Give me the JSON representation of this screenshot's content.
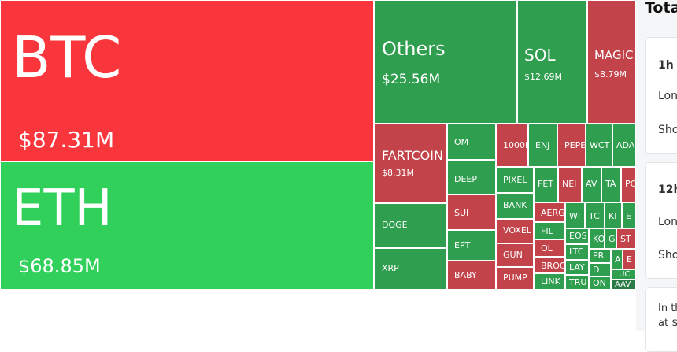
{
  "treemap": {
    "colors": {
      "up": "#2f9e4f",
      "down": "#c2434a",
      "up_bright": "#31d05b",
      "down_bright": "#f8363c"
    },
    "tiles": [
      {
        "symbol": "BTC",
        "value": "$87.31M",
        "dir": "R"
      },
      {
        "symbol": "ETH",
        "value": "$68.85M",
        "dir": "G"
      },
      {
        "symbol": "Others",
        "value": "$25.56M",
        "dir": "g"
      },
      {
        "symbol": "SOL",
        "value": "$12.69M",
        "dir": "g"
      },
      {
        "symbol": "MAGIC",
        "value": "$8.79M",
        "dir": "r"
      },
      {
        "symbol": "FARTCOIN",
        "value": "$8.31M",
        "dir": "r"
      },
      {
        "symbol": "DOGE",
        "dir": "g"
      },
      {
        "symbol": "XRP",
        "dir": "g"
      },
      {
        "symbol": "OM",
        "dir": "g"
      },
      {
        "symbol": "DEEP",
        "dir": "g"
      },
      {
        "symbol": "SUI",
        "dir": "r"
      },
      {
        "symbol": "EPT",
        "dir": "g"
      },
      {
        "symbol": "BABY",
        "dir": "r"
      },
      {
        "symbol": "1000F",
        "dir": "r"
      },
      {
        "symbol": "ENJ",
        "dir": "g"
      },
      {
        "symbol": "PEPE",
        "dir": "r"
      },
      {
        "symbol": "WCT",
        "dir": "g"
      },
      {
        "symbol": "ADA",
        "dir": "g"
      },
      {
        "symbol": "PIXEL",
        "dir": "g"
      },
      {
        "symbol": "BANK",
        "dir": "g"
      },
      {
        "symbol": "VOXEL",
        "dir": "r"
      },
      {
        "symbol": "GUN",
        "dir": "r"
      },
      {
        "symbol": "PUMP",
        "dir": "r"
      },
      {
        "symbol": "FET",
        "dir": "g"
      },
      {
        "symbol": "NEI",
        "dir": "r"
      },
      {
        "symbol": "AV",
        "dir": "g"
      },
      {
        "symbol": "TA",
        "dir": "g"
      },
      {
        "symbol": "PC",
        "dir": "r"
      },
      {
        "symbol": "AERG",
        "dir": "r"
      },
      {
        "symbol": "FIL",
        "dir": "g"
      },
      {
        "symbol": "OL",
        "dir": "r"
      },
      {
        "symbol": "BROC",
        "dir": "r"
      },
      {
        "symbol": "LINK",
        "dir": "g"
      },
      {
        "symbol": "WI",
        "dir": "g"
      },
      {
        "symbol": "TC",
        "dir": "g"
      },
      {
        "symbol": "KI",
        "dir": "g"
      },
      {
        "symbol": "E",
        "dir": "g"
      },
      {
        "symbol": "EOS",
        "dir": "g"
      },
      {
        "symbol": "LTC",
        "dir": "g"
      },
      {
        "symbol": "LAY",
        "dir": "g"
      },
      {
        "symbol": "TRU",
        "dir": "g"
      },
      {
        "symbol": "KO",
        "dir": "g"
      },
      {
        "symbol": "G",
        "dir": "g"
      },
      {
        "symbol": "ST",
        "dir": "r"
      },
      {
        "symbol": "PR",
        "dir": "g"
      },
      {
        "symbol": "D",
        "dir": "g"
      },
      {
        "symbol": "ON",
        "dir": "g"
      },
      {
        "symbol": "A",
        "dir": "g"
      },
      {
        "symbol": "E",
        "dir": "r"
      },
      {
        "symbol": "LUC",
        "dir": "g"
      },
      {
        "symbol": "AAV",
        "dir": "dg"
      }
    ]
  },
  "side": {
    "title": "Tota",
    "cards": [
      {
        "period": "1h",
        "long": "Lon",
        "short": "Sho"
      },
      {
        "period": "12h",
        "long": "Lon",
        "short": "Sho"
      }
    ],
    "note_line1": "In th",
    "note_line2": "at $"
  }
}
